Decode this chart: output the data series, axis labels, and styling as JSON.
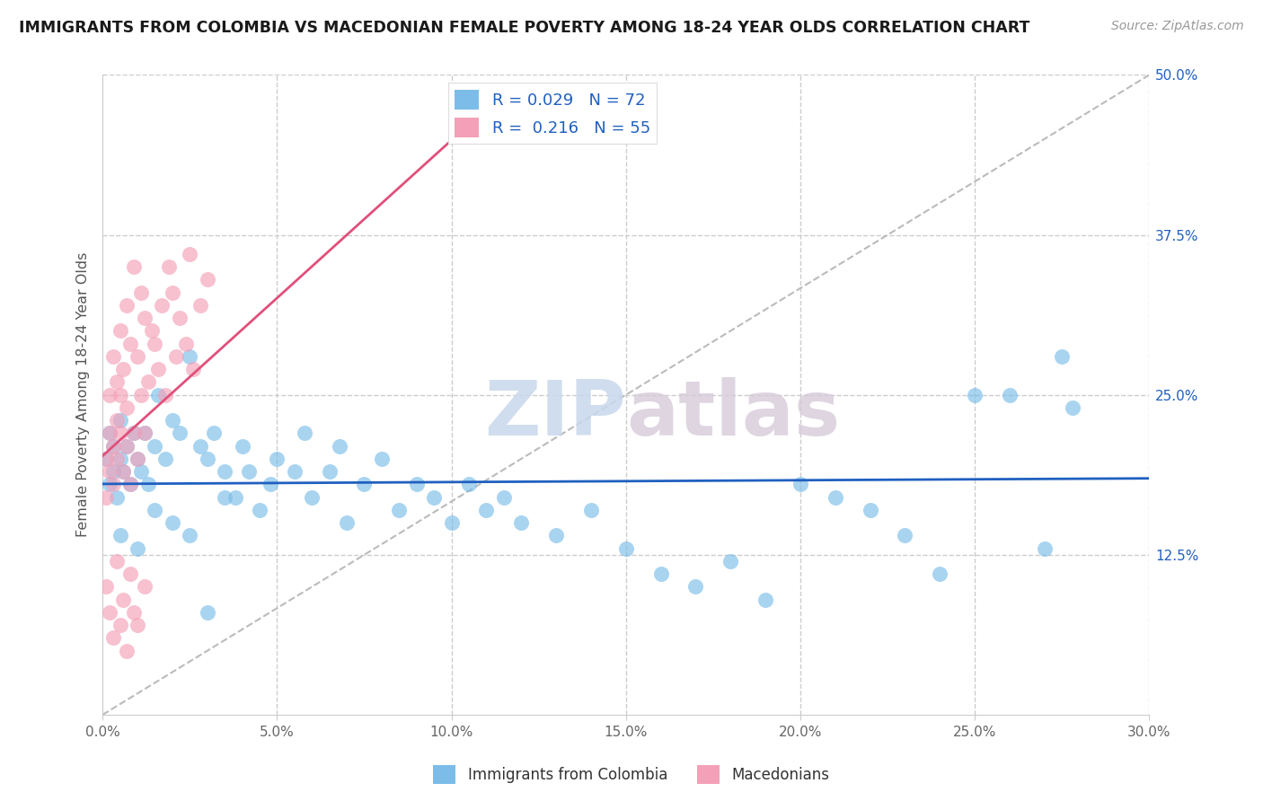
{
  "title": "IMMIGRANTS FROM COLOMBIA VS MACEDONIAN FEMALE POVERTY AMONG 18-24 YEAR OLDS CORRELATION CHART",
  "source": "Source: ZipAtlas.com",
  "ylabel": "Female Poverty Among 18-24 Year Olds",
  "legend_label_1": "Immigrants from Colombia",
  "legend_label_2": "Macedonians",
  "r1": 0.029,
  "n1": 72,
  "r2": 0.216,
  "n2": 55,
  "color1": "#7bbde8",
  "color2": "#f4a0b8",
  "trendline1_color": "#2060c0",
  "trendline2_color": "#e0507a",
  "xlim": [
    0.0,
    0.3
  ],
  "ylim": [
    0.0,
    0.5
  ],
  "xticks": [
    0.0,
    0.05,
    0.1,
    0.15,
    0.2,
    0.25,
    0.3
  ],
  "yticks": [
    0.0,
    0.125,
    0.25,
    0.375,
    0.5
  ],
  "xticklabels": [
    "0.0%",
    "5.0%",
    "10.0%",
    "15.0%",
    "20.0%",
    "25.0%",
    "30.0%"
  ],
  "yticklabels_right": [
    "",
    "12.5%",
    "25.0%",
    "37.5%",
    "50.0%"
  ],
  "watermark_zip": "ZIP",
  "watermark_atlas": "atlas",
  "colombia_x": [
    0.001,
    0.002,
    0.002,
    0.003,
    0.003,
    0.004,
    0.005,
    0.005,
    0.006,
    0.007,
    0.008,
    0.009,
    0.01,
    0.011,
    0.012,
    0.013,
    0.015,
    0.016,
    0.018,
    0.02,
    0.022,
    0.025,
    0.028,
    0.03,
    0.032,
    0.035,
    0.038,
    0.04,
    0.042,
    0.045,
    0.048,
    0.05,
    0.055,
    0.058,
    0.06,
    0.065,
    0.068,
    0.07,
    0.075,
    0.08,
    0.085,
    0.09,
    0.095,
    0.1,
    0.105,
    0.11,
    0.115,
    0.12,
    0.13,
    0.14,
    0.15,
    0.16,
    0.17,
    0.18,
    0.19,
    0.2,
    0.21,
    0.22,
    0.23,
    0.24,
    0.25,
    0.26,
    0.27,
    0.275,
    0.278,
    0.005,
    0.01,
    0.015,
    0.02,
    0.025,
    0.03,
    0.035
  ],
  "colombia_y": [
    0.2,
    0.18,
    0.22,
    0.19,
    0.21,
    0.17,
    0.2,
    0.23,
    0.19,
    0.21,
    0.18,
    0.22,
    0.2,
    0.19,
    0.22,
    0.18,
    0.21,
    0.25,
    0.2,
    0.23,
    0.22,
    0.28,
    0.21,
    0.2,
    0.22,
    0.19,
    0.17,
    0.21,
    0.19,
    0.16,
    0.18,
    0.2,
    0.19,
    0.22,
    0.17,
    0.19,
    0.21,
    0.15,
    0.18,
    0.2,
    0.16,
    0.18,
    0.17,
    0.15,
    0.18,
    0.16,
    0.17,
    0.15,
    0.14,
    0.16,
    0.13,
    0.11,
    0.1,
    0.12,
    0.09,
    0.18,
    0.17,
    0.16,
    0.14,
    0.11,
    0.25,
    0.25,
    0.13,
    0.28,
    0.24,
    0.14,
    0.13,
    0.16,
    0.15,
    0.14,
    0.08,
    0.17
  ],
  "macedonian_x": [
    0.001,
    0.001,
    0.002,
    0.002,
    0.002,
    0.003,
    0.003,
    0.003,
    0.004,
    0.004,
    0.004,
    0.005,
    0.005,
    0.005,
    0.006,
    0.006,
    0.007,
    0.007,
    0.007,
    0.008,
    0.008,
    0.009,
    0.009,
    0.01,
    0.01,
    0.011,
    0.011,
    0.012,
    0.012,
    0.013,
    0.014,
    0.015,
    0.016,
    0.017,
    0.018,
    0.019,
    0.02,
    0.021,
    0.022,
    0.024,
    0.025,
    0.026,
    0.028,
    0.03,
    0.001,
    0.002,
    0.003,
    0.004,
    0.005,
    0.006,
    0.007,
    0.008,
    0.009,
    0.01,
    0.012
  ],
  "macedonian_y": [
    0.2,
    0.17,
    0.22,
    0.19,
    0.25,
    0.18,
    0.21,
    0.28,
    0.2,
    0.23,
    0.26,
    0.22,
    0.25,
    0.3,
    0.19,
    0.27,
    0.21,
    0.24,
    0.32,
    0.18,
    0.29,
    0.22,
    0.35,
    0.2,
    0.28,
    0.25,
    0.33,
    0.22,
    0.31,
    0.26,
    0.3,
    0.29,
    0.27,
    0.32,
    0.25,
    0.35,
    0.33,
    0.28,
    0.31,
    0.29,
    0.36,
    0.27,
    0.32,
    0.34,
    0.1,
    0.08,
    0.06,
    0.12,
    0.07,
    0.09,
    0.05,
    0.11,
    0.08,
    0.07,
    0.1
  ]
}
